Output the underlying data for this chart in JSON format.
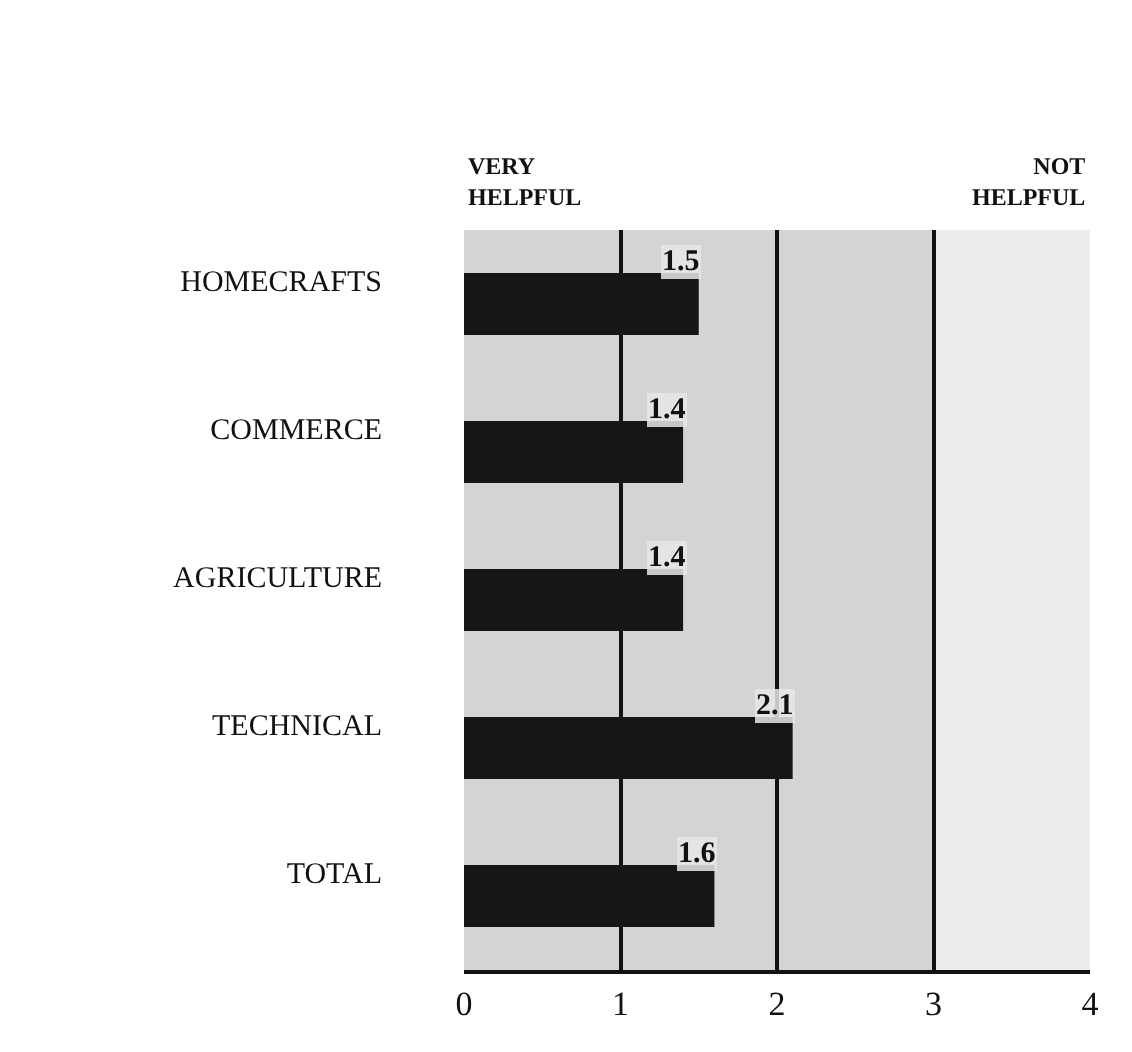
{
  "chart_data": {
    "type": "bar",
    "orientation": "horizontal",
    "categories": [
      "HOMECRAFTS",
      "COMMERCE",
      "AGRICULTURE",
      "TECHNICAL",
      "TOTAL"
    ],
    "values": [
      1.5,
      1.4,
      1.4,
      2.1,
      1.6
    ],
    "color": "#161616",
    "data_labels": true,
    "xlim": [
      0,
      4
    ],
    "xticks": [
      0,
      1,
      2,
      3,
      4
    ],
    "grid": "x",
    "bands": [
      {
        "axis": "x",
        "from": 0,
        "to": 3,
        "color": "#d4d4d4"
      },
      {
        "axis": "x",
        "from": 3,
        "to": 4,
        "color": "#ececec"
      }
    ],
    "annotations": [
      "VERY\nHELPFUL",
      "NOT\nHELPFUL"
    ]
  }
}
